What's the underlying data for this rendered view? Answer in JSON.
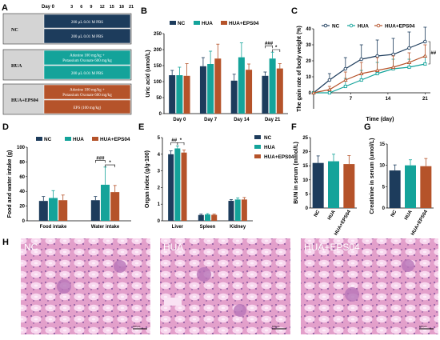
{
  "colors": {
    "nc": "#1d3c5c",
    "hua": "#14a39a",
    "eps": "#b5532a",
    "box_label_bg": "#d4d4d4",
    "histo_bg": "#e7a3cd",
    "histo_tubule": "#f7d2ec",
    "histo_nuclei": "#7a4f9e"
  },
  "panel_letters": [
    "A",
    "B",
    "C",
    "D",
    "E",
    "F",
    "G",
    "H"
  ],
  "panel_a": {
    "timeline_day_label": "Day 0",
    "timeline_days": [
      "3",
      "6",
      "9",
      "12",
      "15",
      "18",
      "21"
    ],
    "groups": [
      {
        "name": "NC",
        "steps": [
          "200 μL 0.01 M PBS",
          "200 μL 0.01 M PBS"
        ]
      },
      {
        "name": "HUA",
        "steps": [
          "Adenine 100 mg/kg + Potassium Oxonate 600 mg/kg",
          "200 μL 0.01 M PBS"
        ]
      },
      {
        "name": "HUA+EPS04",
        "steps": [
          "Adenine 100 mg/kg + Potassium Oxonate 600 mg/kg",
          "EPS (100 mg/kg)"
        ]
      }
    ]
  },
  "chart_data": [
    {
      "id": "B",
      "type": "bar",
      "ylabel": "Uric acid (umol/L)",
      "xlabel": "",
      "ylim": [
        0,
        250
      ],
      "yticks": [
        0,
        50,
        100,
        150,
        200,
        250
      ],
      "categories": [
        "Day 0",
        "Day 7",
        "Day 14",
        "Day 21"
      ],
      "series": [
        {
          "name": "NC",
          "values": [
            120,
            148,
            103,
            118
          ],
          "errors": [
            15,
            27,
            20,
            12
          ]
        },
        {
          "name": "HUA",
          "values": [
            120,
            155,
            176,
            172
          ],
          "errors": [
            25,
            40,
            45,
            20
          ]
        },
        {
          "name": "HUA+EPS04",
          "values": [
            118,
            172,
            137,
            141
          ],
          "errors": [
            38,
            45,
            18,
            15
          ]
        }
      ],
      "legend_position": "top",
      "significance": [
        "###",
        "*"
      ]
    },
    {
      "id": "C",
      "type": "line",
      "ylabel": "The gain rate of body weight (%)",
      "xlabel": "Time (day)",
      "ylim": [
        -10,
        40
      ],
      "yticks": [
        0,
        10,
        20,
        30,
        40
      ],
      "xlim": [
        0,
        22
      ],
      "xticks": [
        7,
        14,
        21
      ],
      "x": [
        0,
        3,
        6,
        9,
        12,
        15,
        18,
        21
      ],
      "series": [
        {
          "name": "NC",
          "values": [
            0,
            8,
            15,
            21,
            23,
            24,
            28,
            32
          ],
          "errors": [
            0,
            4,
            7,
            9,
            10,
            10,
            10,
            9
          ]
        },
        {
          "name": "HUA",
          "values": [
            0,
            0,
            4,
            8,
            12,
            15,
            16,
            18
          ],
          "errors": [
            0,
            2,
            5,
            6,
            7,
            6,
            5,
            5
          ]
        },
        {
          "name": "HUA+EPS04",
          "values": [
            0,
            2,
            8,
            12,
            14,
            16,
            19,
            23
          ],
          "errors": [
            0,
            2,
            5,
            7,
            8,
            7,
            6,
            7
          ]
        }
      ],
      "legend_position": "top",
      "significance": [
        "##"
      ]
    },
    {
      "id": "D",
      "type": "bar",
      "ylabel": "Food and water intake (g)",
      "xlabel": "",
      "ylim": [
        0,
        100
      ],
      "yticks": [
        0,
        20,
        40,
        60,
        80,
        100
      ],
      "categories": [
        "Food intake",
        "Water intake"
      ],
      "series": [
        {
          "name": "NC",
          "values": [
            27,
            28
          ],
          "errors": [
            6,
            5
          ]
        },
        {
          "name": "HUA",
          "values": [
            31,
            49
          ],
          "errors": [
            10,
            24
          ]
        },
        {
          "name": "HUA+EPS04",
          "values": [
            28,
            39
          ],
          "errors": [
            7,
            9
          ]
        }
      ],
      "legend_position": "top",
      "significance": [
        "###",
        "*"
      ]
    },
    {
      "id": "E",
      "type": "bar",
      "ylabel": "Organ index (g/g·100)",
      "xlabel": "",
      "ylim": [
        0,
        5
      ],
      "yticks": [
        0,
        1,
        2,
        3,
        4,
        5
      ],
      "categories": [
        "Liver",
        "Spleen",
        "Kidney"
      ],
      "series": [
        {
          "name": "NC",
          "values": [
            4.0,
            0.35,
            1.2
          ],
          "errors": [
            0.2,
            0.05,
            0.08
          ]
        },
        {
          "name": "HUA",
          "values": [
            4.35,
            0.38,
            1.28
          ],
          "errors": [
            0.15,
            0.05,
            0.1
          ]
        },
        {
          "name": "HUA+EPS04",
          "values": [
            4.1,
            0.36,
            1.28
          ],
          "errors": [
            0.15,
            0.04,
            0.12
          ]
        }
      ],
      "legend_position": "right",
      "significance": [
        "##",
        "*"
      ]
    },
    {
      "id": "F",
      "type": "bar",
      "ylabel": "BUN  in serum (mmol/L)",
      "xlabel": "",
      "ylim": [
        0,
        25
      ],
      "yticks": [
        0,
        5,
        10,
        15,
        20,
        25
      ],
      "categories": [
        "NC",
        "HUA",
        "HUA+EPS04"
      ],
      "values": [
        16.0,
        16.6,
        15.6
      ],
      "errors": [
        2.5,
        2.5,
        3.0
      ]
    },
    {
      "id": "G",
      "type": "bar",
      "ylabel": "Creatinine in serum (umol/L)",
      "xlabel": "",
      "ylim": [
        0,
        15
      ],
      "yticks": [
        0,
        5,
        10,
        15
      ],
      "categories": [
        "NC",
        "HUA",
        "HUA+EPS04"
      ],
      "values": [
        8.8,
        10.0,
        9.8
      ],
      "errors": [
        1.3,
        1.3,
        1.8
      ]
    }
  ],
  "panel_h": {
    "labels": [
      "NC",
      "HUA",
      "HUA+EPS04"
    ],
    "scale_bar": "100 μm"
  }
}
